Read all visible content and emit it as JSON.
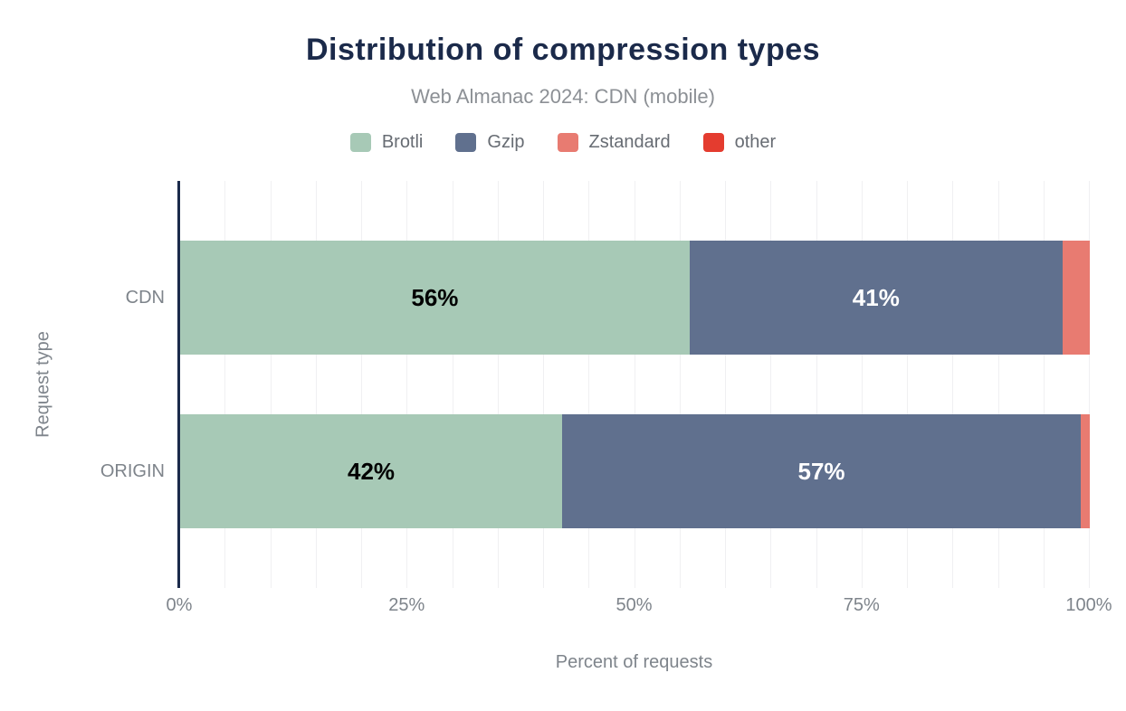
{
  "chart_data": {
    "type": "bar",
    "orientation": "horizontal",
    "stacked": true,
    "title": "Distribution of compression types",
    "subtitle": "Web Almanac 2024: CDN (mobile)",
    "xlabel": "Percent of requests",
    "ylabel": "Request type",
    "categories": [
      "CDN",
      "ORIGIN"
    ],
    "series": [
      {
        "name": "Brotli",
        "color": "#a7c9b6",
        "label_color": "#000000",
        "values": [
          56,
          42
        ]
      },
      {
        "name": "Gzip",
        "color": "#60708e",
        "label_color": "#ffffff",
        "values": [
          41,
          57
        ]
      },
      {
        "name": "Zstandard",
        "color": "#e87b71",
        "label_color": "#000000",
        "values": [
          3,
          1
        ]
      },
      {
        "name": "other",
        "color": "#e43c2f",
        "label_color": "#ffffff",
        "values": [
          0,
          0
        ]
      }
    ],
    "x_ticks": [
      "0%",
      "25%",
      "50%",
      "75%",
      "100%"
    ],
    "x_tick_values": [
      0,
      25,
      50,
      75,
      100
    ],
    "xlim": [
      0,
      100
    ],
    "gridline_step_pct": 5,
    "legend_position": "top",
    "value_suffix": "%",
    "min_value_for_label": 5,
    "colors": {
      "title": "#1b2a4a",
      "axis_line": "#1b2a4a",
      "gridline": "#f0f0f2",
      "tick_text": "#7e848b"
    }
  }
}
